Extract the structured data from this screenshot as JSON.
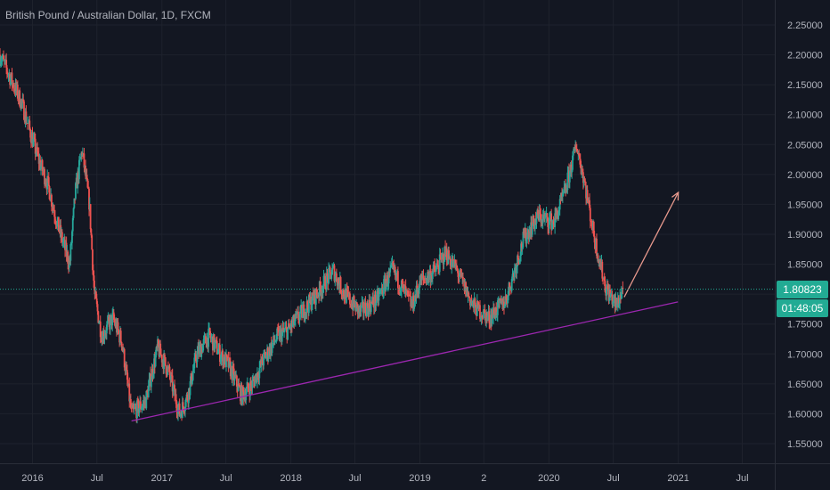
{
  "header": {
    "title": "British Pound / Australian Dollar, 1D, FXCM"
  },
  "price_labels": {
    "last_price": "1.80823",
    "countdown": "01:48:05"
  },
  "colors": {
    "background": "#131722",
    "up": "#26a69a",
    "down": "#ef5350",
    "trendline": "#9c27b0",
    "arrow": "#e8998d",
    "price_line": "#22ab94",
    "axis_text": "#b2b5be",
    "grid": "#1e222d"
  },
  "chart_data": {
    "type": "candlestick",
    "title": "British Pound / Australian Dollar, 1D, FXCM",
    "x_tick_labels": [
      "2016",
      "Jul",
      "2017",
      "Jul",
      "2018",
      "Jul",
      "2019",
      "2",
      "2020",
      "Jul",
      "2021",
      "Jul"
    ],
    "y_tick_labels": [
      "2.25000",
      "2.20000",
      "2.15000",
      "2.10000",
      "2.05000",
      "2.00000",
      "1.95000",
      "1.90000",
      "1.85000",
      "1.80000",
      "1.75000",
      "1.70000",
      "1.65000",
      "1.60000",
      "1.55000"
    ],
    "ylim": [
      1.53,
      2.27
    ],
    "xlim": [
      "2015-10-01",
      "2021-10-01"
    ],
    "last_price": 1.80823,
    "close_path": [
      [
        "2015-10-01",
        2.2
      ],
      [
        "2015-12-01",
        2.12
      ],
      [
        "2016-01-15",
        2.03
      ],
      [
        "2016-02-15",
        1.98
      ],
      [
        "2016-03-10",
        1.92
      ],
      [
        "2016-04-15",
        1.85
      ],
      [
        "2016-05-01",
        1.97
      ],
      [
        "2016-05-20",
        2.04
      ],
      [
        "2016-06-10",
        1.95
      ],
      [
        "2016-06-24",
        1.8
      ],
      [
        "2016-07-15",
        1.73
      ],
      [
        "2016-08-15",
        1.76
      ],
      [
        "2016-09-10",
        1.72
      ],
      [
        "2016-10-07",
        1.6
      ],
      [
        "2016-11-15",
        1.62
      ],
      [
        "2016-12-20",
        1.71
      ],
      [
        "2017-01-20",
        1.67
      ],
      [
        "2017-02-20",
        1.6
      ],
      [
        "2017-03-15",
        1.63
      ],
      [
        "2017-04-10",
        1.7
      ],
      [
        "2017-05-15",
        1.73
      ],
      [
        "2017-06-15",
        1.7
      ],
      [
        "2017-07-10",
        1.68
      ],
      [
        "2017-08-15",
        1.63
      ],
      [
        "2017-09-15",
        1.65
      ],
      [
        "2017-10-15",
        1.69
      ],
      [
        "2017-11-25",
        1.73
      ],
      [
        "2017-12-25",
        1.74
      ],
      [
        "2018-01-20",
        1.76
      ],
      [
        "2018-03-15",
        1.8
      ],
      [
        "2018-05-01",
        1.84
      ],
      [
        "2018-06-01",
        1.8
      ],
      [
        "2018-07-15",
        1.77
      ],
      [
        "2018-09-01",
        1.79
      ],
      [
        "2018-10-15",
        1.84
      ],
      [
        "2018-12-10",
        1.78
      ],
      [
        "2019-01-01",
        1.82
      ],
      [
        "2019-02-15",
        1.84
      ],
      [
        "2019-03-15",
        1.87
      ],
      [
        "2019-04-15",
        1.84
      ],
      [
        "2019-06-01",
        1.78
      ],
      [
        "2019-07-15",
        1.76
      ],
      [
        "2019-09-01",
        1.79
      ],
      [
        "2019-10-20",
        1.89
      ],
      [
        "2019-12-01",
        1.93
      ],
      [
        "2020-01-15",
        1.92
      ],
      [
        "2020-02-15",
        1.97
      ],
      [
        "2020-03-19",
        2.05
      ],
      [
        "2020-04-10",
        1.99
      ],
      [
        "2020-05-10",
        1.89
      ],
      [
        "2020-06-10",
        1.81
      ],
      [
        "2020-07-10",
        1.78
      ],
      [
        "2020-07-28",
        1.80823
      ]
    ],
    "annotations": {
      "trendline": {
        "from": [
          "2016-10-07",
          1.588
        ],
        "to": [
          "2020-12-31",
          1.787
        ]
      },
      "projection_arrow": {
        "from": [
          "2020-08-01",
          1.795
        ],
        "to": [
          "2021-01-01",
          1.97
        ]
      }
    },
    "grid": true
  }
}
